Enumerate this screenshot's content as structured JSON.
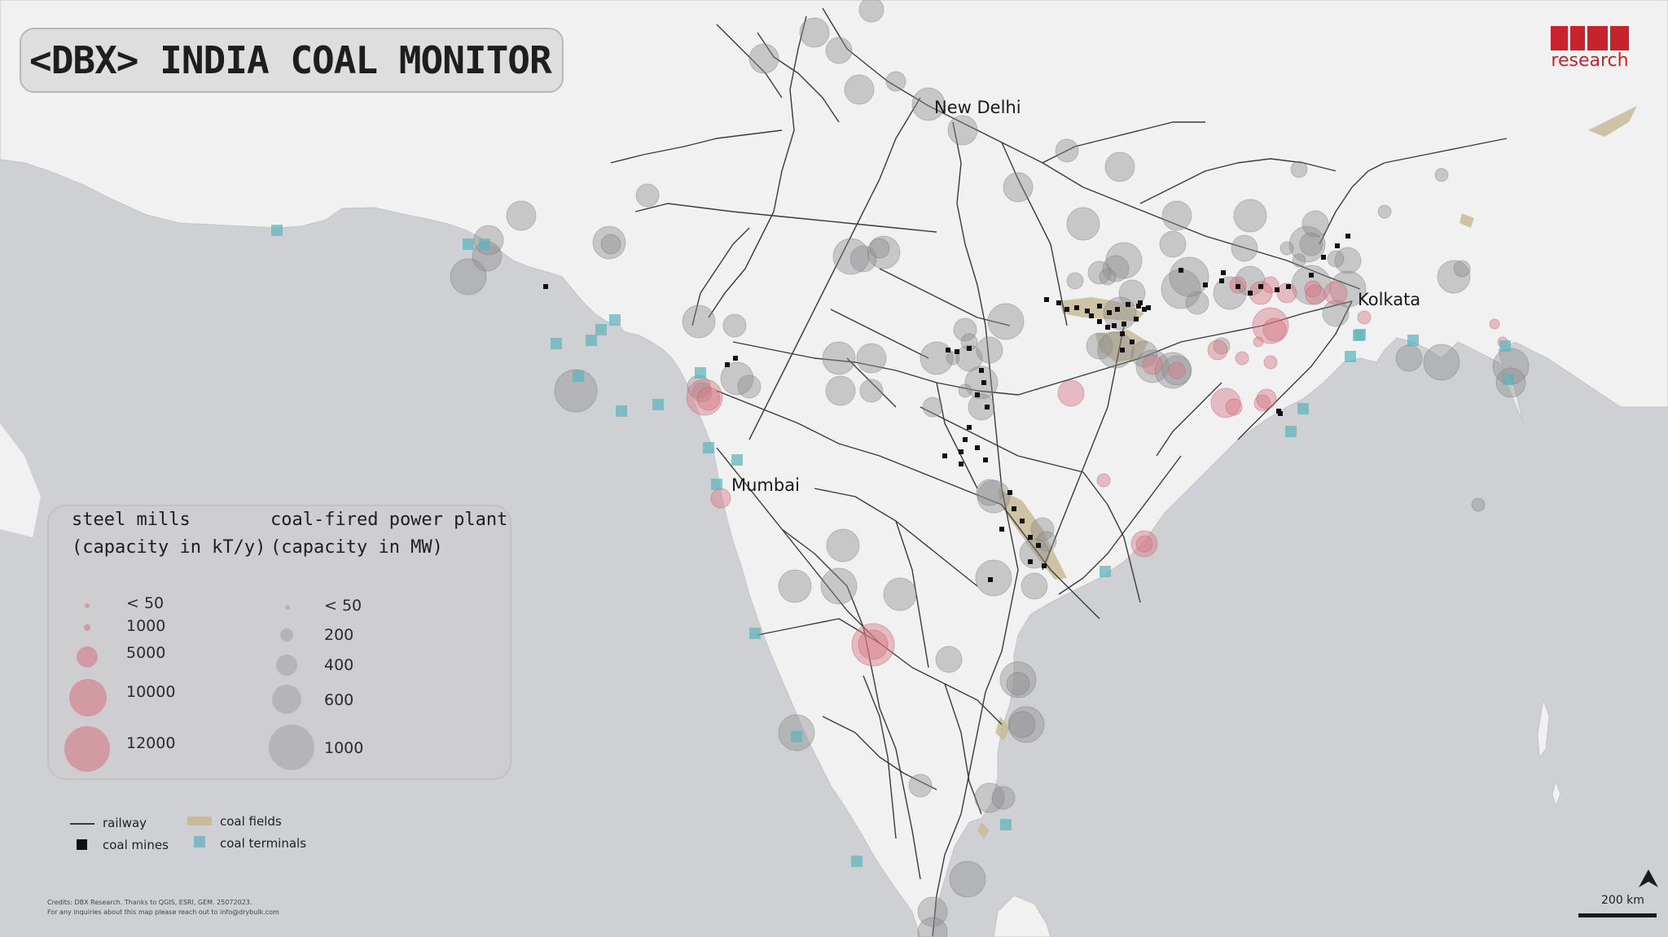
{
  "title": "<DBX> INDIA COAL MONITOR",
  "logo": {
    "text": "research",
    "color": "#c8232c"
  },
  "cities": [
    {
      "name": "New Delhi"
    },
    {
      "name": "Kolkata"
    },
    {
      "name": "Mumbai"
    }
  ],
  "legend": {
    "steel_heading": [
      "steel mills",
      "(capacity in kT/y)"
    ],
    "power_heading": [
      "coal-fired power plant",
      "(capacity in MW)"
    ],
    "steel_sizes": [
      "< 50",
      "1000",
      "5000",
      "10000",
      "12000"
    ],
    "power_sizes": [
      "< 50",
      "200",
      "400",
      "600",
      "1000"
    ]
  },
  "key": {
    "railway": "railway",
    "coal_mines": "coal mines",
    "coal_fields": "coal fields",
    "coal_terminals": "coal terminals"
  },
  "colors": {
    "land": "#f1f1f1",
    "sea": "#cfd0d3",
    "steel": "#d67886",
    "power": "#8f8f91",
    "terminal": "#5fb3bd",
    "coal_field": "#c9bb98",
    "mine": "#111111"
  },
  "credits": [
    "Credits: DBX Research. Thanks to QGIS, ESRI, GEM. 25072023.",
    "For any inquiries about this map please reach out to info@drybulk.com"
  ],
  "scale": "200 km"
}
